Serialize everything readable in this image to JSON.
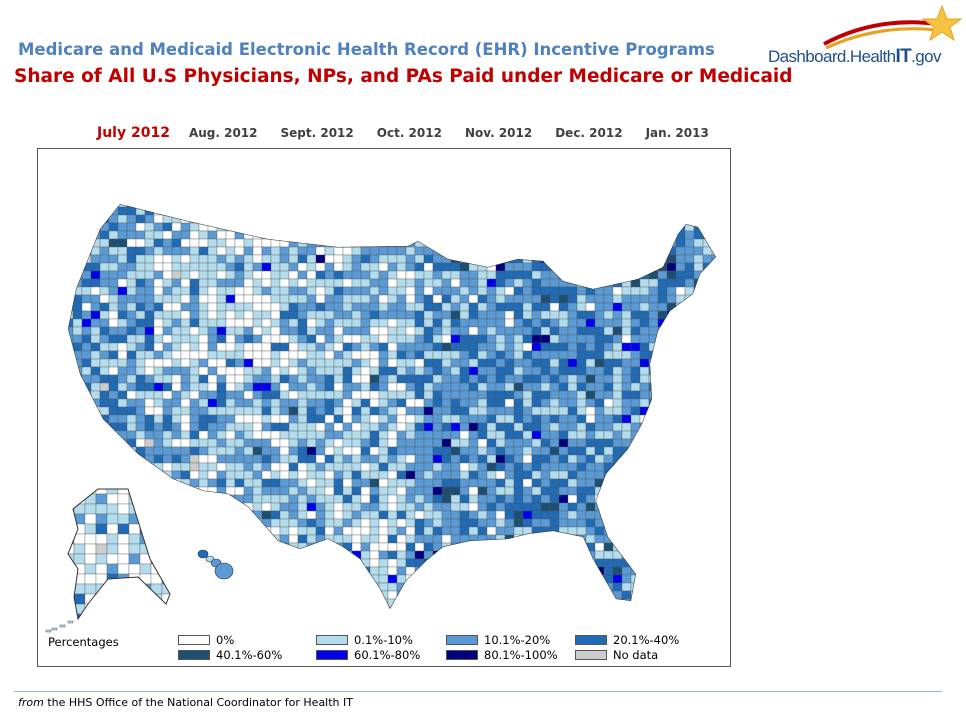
{
  "header": {
    "title": "Medicare and Medicaid Electronic Health Record (EHR) Incentive Programs",
    "subtitle": "Share of All U.S Physicians, NPs, and PAs Paid under Medicare or Medicaid"
  },
  "logo": {
    "text_regular": "Dashboard.Health",
    "text_bold": "IT",
    "text_suffix": ".gov"
  },
  "month_tabs": [
    {
      "label": "July 2012",
      "active": true
    },
    {
      "label": "Aug. 2012",
      "active": false
    },
    {
      "label": "Sept. 2012",
      "active": false
    },
    {
      "label": "Oct. 2012",
      "active": false
    },
    {
      "label": "Nov. 2012",
      "active": false
    },
    {
      "label": "Dec. 2012",
      "active": false
    },
    {
      "label": "Jan. 2013",
      "active": false
    }
  ],
  "map": {
    "region": "United States counties",
    "legend": {
      "title": "Percentages",
      "items": [
        {
          "label": "0%",
          "color": "#ffffff"
        },
        {
          "label": "0.1%-10%",
          "color": "#b3dcec"
        },
        {
          "label": "10.1%-20%",
          "color": "#5b9bd5"
        },
        {
          "label": "20.1%-40%",
          "color": "#1f6bb5"
        },
        {
          "label": "40.1%-60%",
          "color": "#1d4f73"
        },
        {
          "label": "60.1%-80%",
          "color": "#0000ee"
        },
        {
          "label": "80.1%-100%",
          "color": "#000080"
        },
        {
          "label": "No data",
          "color": "#cccccc"
        }
      ]
    }
  },
  "footer": {
    "prefix": "from",
    "text": " the HHS Office of the National Coordinator for Health IT"
  }
}
